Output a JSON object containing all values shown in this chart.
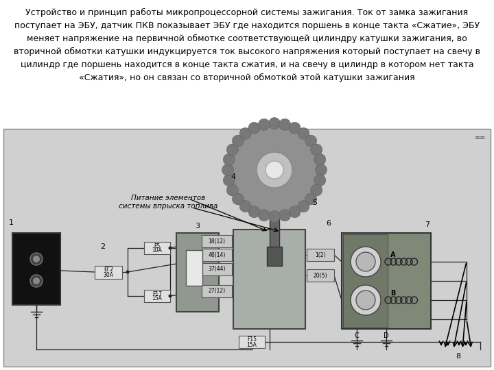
{
  "bg_diagram": "#d0d0d0",
  "bg_white": "#f0f0f0",
  "page_white": "#ffffff",
  "battery_fc": "#111111",
  "fuse_fc": "#e0e0e0",
  "fuse_ec": "#555555",
  "pkv_fc": "#909890",
  "pkv_inner_fc": "#e8e8e8",
  "ecu_fc": "#a8aea8",
  "conn_fc": "#c8c8c8",
  "ign_fc": "#808878",
  "ign_inner_fc": "#707868",
  "transistor_fc": "#d0d0d0",
  "transistor_ec": "#444444",
  "coil_bg": "#909890",
  "line_color": "#222222",
  "text_color": "#000000",
  "gear_fc": "#909090",
  "gear_tooth_fc": "#787878",
  "gear_hub_fc": "#c0c0c0",
  "gear_hole_fc": "#e8e8e8",
  "sensor_stem_fc": "#666666",
  "fuel_label": "Питание элементов\nсистемы впрыска топлива",
  "text_line1_pre": "Устройство и принцип работы ",
  "text_line1_bold": "микропроцессорной",
  "text_line1_post": " системы зажигания. Ток от замка зажигания",
  "text_line2": "поступает на ЭБУ, датчик ПКВ показывает ЭБУ где находится поршень в конце такта «Сжатие», ЭБУ",
  "text_line3": "меняет напряжение на первичной обмотке соответствующей цилиндру катушки зажигания, во",
  "text_line4": "вторичной обмотки катушки индукцируется ток высокого напряжения который поступает на свечу в",
  "text_line5": "цилиндр где поршень находится в конце такта сжатия, и на свечу в цилиндр в котором нет такта",
  "text_line6": "«Сжатия», но он связан со вторичной обмоткой этой катушки зажигания"
}
